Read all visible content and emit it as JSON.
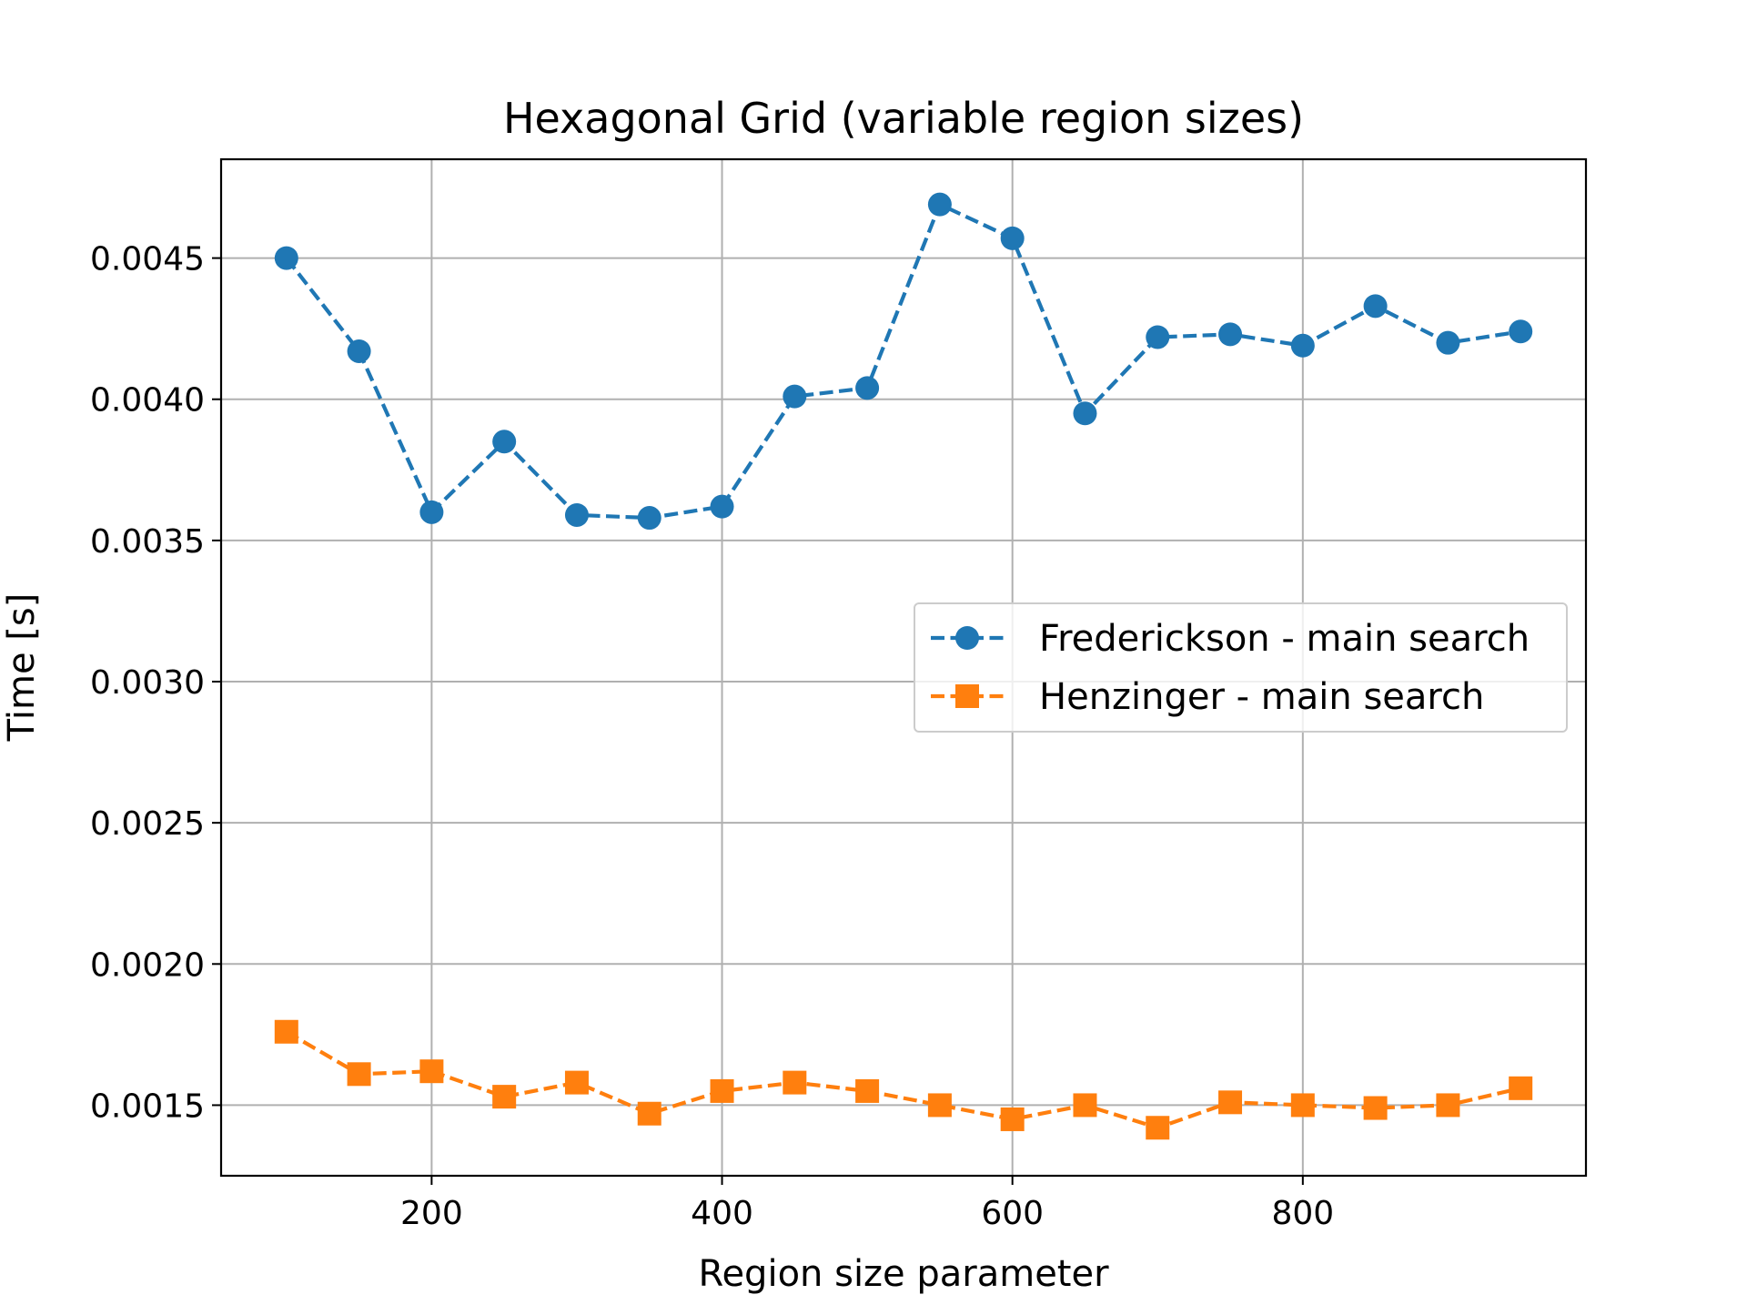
{
  "chart_data": {
    "type": "line",
    "title": "Hexagonal Grid (variable region sizes)",
    "xlabel": "Region size parameter",
    "ylabel": "Time [s]",
    "xlim": [
      55,
      995
    ],
    "ylim": [
      0.00125,
      0.00485
    ],
    "xticks": [
      200,
      400,
      600,
      800
    ],
    "xtick_labels": [
      "200",
      "400",
      "600",
      "800"
    ],
    "yticks": [
      0.0015,
      0.002,
      0.0025,
      0.003,
      0.0035,
      0.004,
      0.0045
    ],
    "ytick_labels": [
      "0.0015",
      "0.0020",
      "0.0025",
      "0.0030",
      "0.0035",
      "0.0040",
      "0.0045"
    ],
    "grid": true,
    "legend_position": "center-right",
    "x": [
      100,
      150,
      200,
      250,
      300,
      350,
      400,
      450,
      500,
      550,
      600,
      650,
      700,
      750,
      800,
      850,
      900,
      950
    ],
    "series": [
      {
        "name": "Frederickson - main search",
        "color": "#1f77b4",
        "marker": "circle",
        "linestyle": "dashed",
        "values": [
          0.0045,
          0.00417,
          0.0036,
          0.00385,
          0.00359,
          0.00358,
          0.00362,
          0.00401,
          0.00404,
          0.00469,
          0.00457,
          0.00395,
          0.00422,
          0.00423,
          0.00419,
          0.00433,
          0.0042,
          0.00424
        ]
      },
      {
        "name": "Henzinger - main search",
        "color": "#ff7f0e",
        "marker": "square",
        "linestyle": "dashed",
        "values": [
          0.00176,
          0.00161,
          0.00162,
          0.00153,
          0.00158,
          0.00147,
          0.00155,
          0.00158,
          0.00155,
          0.0015,
          0.00145,
          0.0015,
          0.00142,
          0.00151,
          0.0015,
          0.00149,
          0.0015,
          0.00156
        ]
      }
    ]
  }
}
